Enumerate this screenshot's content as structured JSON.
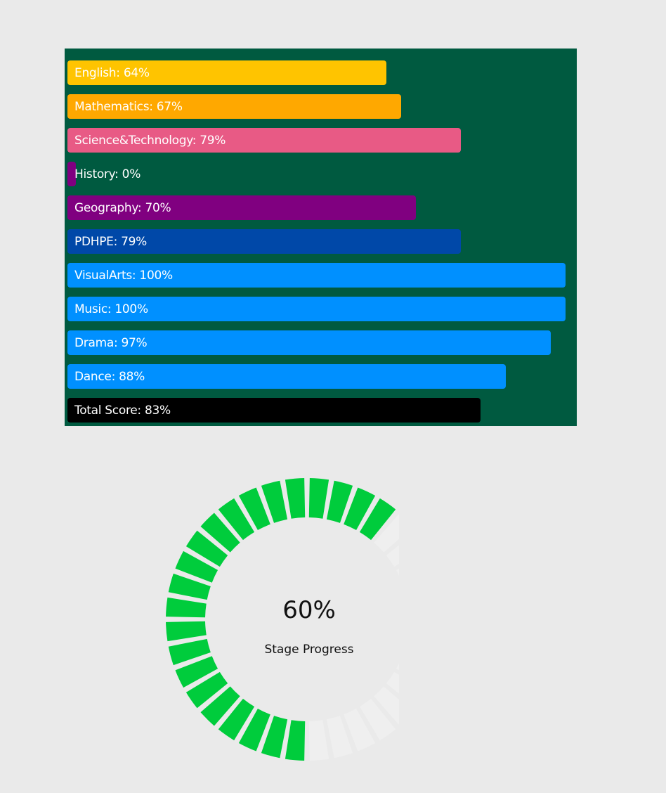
{
  "subjects": [
    {
      "name": "English",
      "label": "English: 64%",
      "percent": 64,
      "color": "#ffc400"
    },
    {
      "name": "Mathematics",
      "label": "Mathematics: 67%",
      "percent": 67,
      "color": "#ffa800"
    },
    {
      "name": "Science&Technology",
      "label": "Science&Technology: 79%",
      "percent": 79,
      "color": "#e85a85"
    },
    {
      "name": "History",
      "label": "History: 0%",
      "percent": 0,
      "color": "#800080"
    },
    {
      "name": "Geography",
      "label": "Geography: 70%",
      "percent": 70,
      "color": "#800080"
    },
    {
      "name": "PDHPE",
      "label": "PDHPE: 79%",
      "percent": 79,
      "color": "#0048a8"
    },
    {
      "name": "VisualArts",
      "label": "VisualArts: 100%",
      "percent": 100,
      "color": "#0090ff"
    },
    {
      "name": "Music",
      "label": "Music: 100%",
      "percent": 100,
      "color": "#0090ff"
    },
    {
      "name": "Drama",
      "label": "Drama: 97%",
      "percent": 97,
      "color": "#0090ff"
    },
    {
      "name": "Dance",
      "label": "Dance: 88%",
      "percent": 88,
      "color": "#0090ff"
    },
    {
      "name": "Total Score",
      "label": "Total Score: 83%",
      "percent": 83,
      "color": "#000000"
    }
  ],
  "gauge": {
    "percent_label": "60%",
    "caption": "Stage Progress",
    "progress": 0.6,
    "filled_color": "#00cc3c",
    "empty_color": "#efefef"
  }
}
